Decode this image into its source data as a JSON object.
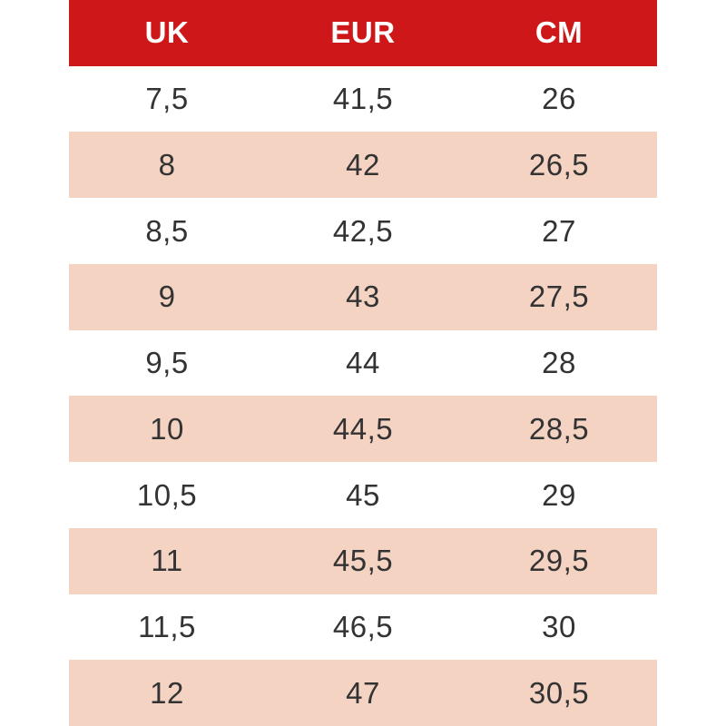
{
  "colors": {
    "page_background": "#ffffff",
    "header_background": "#cd1719",
    "header_text": "#ffffff",
    "row_stripe": "#f5d3c3",
    "cell_text": "#333333"
  },
  "chart_data": {
    "type": "table",
    "title": "",
    "columns": [
      "UK",
      "EUR",
      "CM"
    ],
    "rows": [
      [
        "7,5",
        "41,5",
        "26"
      ],
      [
        "8",
        "42",
        "26,5"
      ],
      [
        "8,5",
        "42,5",
        "27"
      ],
      [
        "9",
        "43",
        "27,5"
      ],
      [
        "9,5",
        "44",
        "28"
      ],
      [
        "10",
        "44,5",
        "28,5"
      ],
      [
        "10,5",
        "45",
        "29"
      ],
      [
        "11",
        "45,5",
        "29,5"
      ],
      [
        "11,5",
        "46,5",
        "30"
      ],
      [
        "12",
        "47",
        "30,5"
      ]
    ],
    "layout": {
      "header_style": "solid red band, white bold text",
      "stripe_pattern": "alternating white and peach rows starting white",
      "column_alignment": "center",
      "grid": "off"
    }
  }
}
